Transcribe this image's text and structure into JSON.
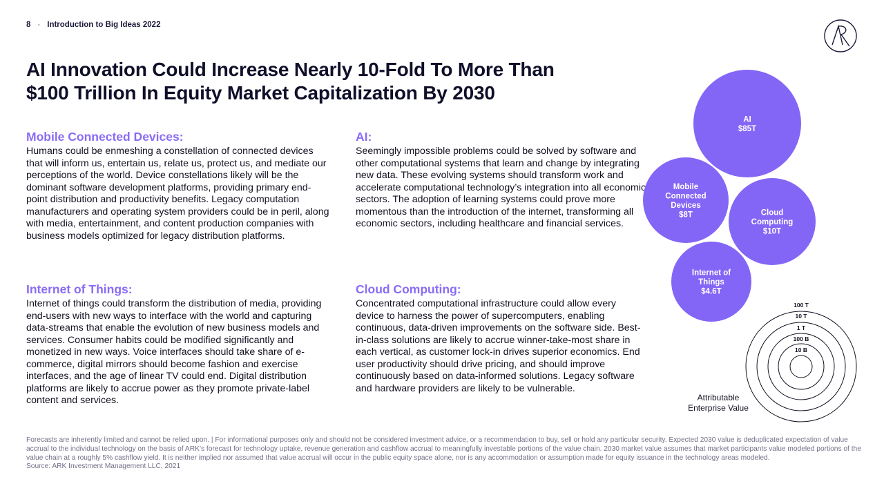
{
  "header": {
    "page_number": "8",
    "separator": "·",
    "deck_title": "Introduction to Big Ideas 2022"
  },
  "logo": {
    "icon": "ark-logo-icon"
  },
  "title": {
    "line1": "AI Innovation Could Increase Nearly 10-Fold To More Than",
    "line2": "$100 Trillion In Equity Market Capitalization By 2030"
  },
  "sections": {
    "mobile": {
      "heading": "Mobile Connected Devices:",
      "body": "Humans could be enmeshing a constellation of connected devices that will inform us, entertain us, relate us, protect us, and mediate our perceptions of the world. Device constellations likely will be the dominant software development platforms, providing primary end-point distribution and productivity benefits. Legacy computation manufacturers and operating system providers could be in peril, along with media, entertainment, and content production companies with business models optimized for legacy distribution platforms."
    },
    "ai": {
      "heading": "AI:",
      "body": "Seemingly impossible problems could be solved by software and other computational systems that learn and change by integrating new data.  These evolving systems should transform work and accelerate computational technology’s integration into all economic sectors. The adoption of learning systems could prove more momentous than the introduction of the internet, transforming all economic sectors, including healthcare and financial services."
    },
    "iot": {
      "heading": "Internet of Things:",
      "body": "Internet of things could transform the distribution of media, providing end-users with new ways to interface with the world and capturing data-streams that enable the evolution of new business models and services. Consumer habits could be modified significantly and monetized in new ways. Voice interfaces should take share of e-commerce, digital mirrors should become fashion and exercise interfaces, and the age of linear TV could end. Digital distribution platforms are likely to accrue power as they promote private-label content and services."
    },
    "cloud": {
      "heading": "Cloud Computing:",
      "body": "Concentrated computational infrastructure could allow every device to harness the power of supercomputers, enabling continuous, data-driven improvements on the software side. Best-in-class solutions are likely to accrue winner-take-most share in each vertical, as customer lock-in drives superior economics. End user productivity should drive pricing, and should improve continuously based on data-informed solutions. Legacy software and hardware providers are likely to be vulnerable."
    }
  },
  "bubbles": {
    "color": "#8466f6",
    "items": [
      {
        "name": "ai",
        "lines": [
          "AI",
          "$85T"
        ],
        "value_trillions": 85
      },
      {
        "name": "mobile",
        "lines": [
          "Mobile",
          "Connected",
          "Devices",
          "$8T"
        ],
        "value_trillions": 8
      },
      {
        "name": "cloud",
        "lines": [
          "Cloud",
          "Computing",
          "$10T"
        ],
        "value_trillions": 10
      },
      {
        "name": "iot",
        "lines": [
          "Internet of",
          "Things",
          "$4.6T"
        ],
        "value_trillions": 4.6
      }
    ]
  },
  "legend": {
    "rings": [
      "100 T",
      "10 T",
      "1 T",
      "100 B",
      "10 B"
    ],
    "label_line1": "Attributable",
    "label_line2": "Enterprise Value"
  },
  "footer": {
    "disclaimer": "Forecasts are inherently limited and cannot be relied upon. | For informational purposes only and should not be considered investment advice, or a recommendation to buy, sell or hold any particular security. Expected 2030 value is deduplicated expectation of value accrual to the individual technology on the basis of ARK’s forecast for technology uptake, revenue generation and cashflow accrual to meaningfully investable portions of the value chain. 2030 market value assumes that market participants value modeled portions of the value chain at a  roughly 5% cashflow yield. It is neither implied nor assumed that value accrual will occur in the public equity space alone, nor is any accommodation or assumption made for equity issuance in the technology areas modeled.",
    "source": "Source: ARK Investment Management LLC, 2021"
  }
}
